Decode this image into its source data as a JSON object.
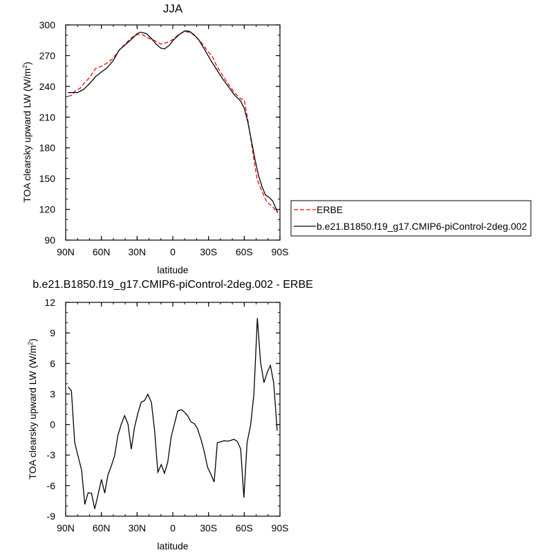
{
  "chart_data": [
    {
      "type": "line",
      "title": "JJA",
      "xlabel": "latitude",
      "ylabel": "TOA clearsky upward LW (W/m²)",
      "xlim": [
        90,
        -90
      ],
      "ylim": [
        90,
        300
      ],
      "xticks": [
        90,
        60,
        30,
        0,
        -30,
        -60,
        -90
      ],
      "xticklabels": [
        "90N",
        "60N",
        "30N",
        "0",
        "30S",
        "60S",
        "90S"
      ],
      "yticks": [
        90,
        120,
        150,
        180,
        210,
        240,
        270,
        300
      ],
      "yticklabels": [
        "90",
        "120",
        "150",
        "180",
        "210",
        "240",
        "270",
        "300"
      ],
      "grid": false,
      "legend": "right",
      "series": [
        {
          "name": "ERBE",
          "color": "#ff0000",
          "dash": "dashed",
          "x": [
            88,
            85,
            82,
            78,
            74,
            70,
            65,
            60,
            55,
            50,
            45,
            40,
            35,
            30,
            25,
            20,
            15,
            10,
            5,
            0,
            -5,
            -10,
            -15,
            -20,
            -25,
            -30,
            -33,
            -37,
            -42,
            -47,
            -52,
            -57,
            -60,
            -63,
            -66,
            -69,
            -71,
            -75,
            -79,
            -83,
            -88
          ],
          "y": [
            230.2,
            231.3,
            235.8,
            238.1,
            243.8,
            248.3,
            257.4,
            259.6,
            263,
            267.6,
            275.5,
            281.2,
            287.3,
            290.7,
            290.2,
            286.8,
            284.6,
            281.2,
            282.8,
            285.7,
            290.9,
            293.7,
            292.5,
            288,
            281.2,
            273.2,
            269.8,
            259.6,
            250.6,
            241.5,
            233.6,
            227.9,
            226.8,
            207.5,
            184.8,
            162.2,
            148.5,
            137.2,
            127,
            123.6,
            116.8
          ]
        },
        {
          "name": "b.e21.B1850.f19_g17.CMIP6-piControl-2deg.002",
          "color": "#000000",
          "dash": "solid",
          "x": [
            88,
            80,
            75,
            70,
            65,
            60,
            55,
            50,
            45,
            40,
            35,
            30,
            27,
            22,
            18,
            14,
            10,
            7,
            3,
            0,
            -5,
            -10,
            -14,
            -18,
            -22,
            -27,
            -32,
            -37,
            -42,
            -47,
            -52,
            -57,
            -60,
            -63,
            -66,
            -69,
            -72,
            -75,
            -78,
            -81,
            -84,
            -88
          ],
          "y": [
            234,
            234,
            237,
            242.6,
            249.4,
            254,
            258.5,
            265.3,
            275.5,
            280.5,
            285.7,
            291.4,
            293,
            291.4,
            286.8,
            281.2,
            277.3,
            276.6,
            280,
            284.6,
            290.2,
            294.1,
            293.7,
            290.2,
            285,
            275.5,
            265.3,
            256.2,
            247.2,
            239.2,
            231.3,
            225.6,
            218.8,
            205.2,
            187.1,
            169,
            153.1,
            141.8,
            133.8,
            131.5,
            128.1,
            116.8
          ]
        }
      ]
    },
    {
      "type": "line",
      "title": "b.e21.B1850.f19_g17.CMIP6-piControl-2deg.002 - ERBE",
      "xlabel": "latitude",
      "ylabel": "TOA clearsky upward LW (W/m²)",
      "xlim": [
        90,
        -90
      ],
      "ylim": [
        -9,
        12
      ],
      "xticks": [
        90,
        60,
        30,
        0,
        -30,
        -60,
        -90
      ],
      "xticklabels": [
        "90N",
        "60N",
        "30N",
        "0",
        "30S",
        "60S",
        "90S"
      ],
      "yticks": [
        -9,
        -6,
        -3,
        0,
        3,
        6,
        9,
        12
      ],
      "yticklabels": [
        "-9",
        "-6",
        "-3",
        "0",
        "3",
        "6",
        "9",
        "12"
      ],
      "grid": false,
      "series": [
        {
          "color": "#000000",
          "x": [
            87.9,
            85.2,
            82.4,
            79.5,
            76.6,
            73.9,
            71.2,
            68.3,
            65.6,
            62.7,
            59.9,
            57.2,
            54.5,
            51.6,
            48.9,
            46.2,
            43.3,
            40.5,
            37.6,
            34.9,
            32.2,
            29.3,
            26.6,
            23.7,
            21.0,
            18.0,
            15.3,
            12.6,
            9.7,
            7.0,
            4.3,
            1.4,
            -1.4,
            -4.1,
            -7.0,
            -9.7,
            -12.4,
            -15.3,
            -18.0,
            -20.7,
            -23.7,
            -26.4,
            -29.1,
            -32.0,
            -34.7,
            -37.4,
            -40.3,
            -43.0,
            -45.8,
            -48.7,
            -51.4,
            -54.1,
            -57.0,
            -59.7,
            -62.4,
            -65.3,
            -68.1,
            -71.0,
            -73.7,
            -76.6,
            -79.3,
            -82.0,
            -84.7,
            -87.7
          ],
          "y": [
            3.7,
            3.31,
            -1.79,
            -3.15,
            -4.51,
            -7.84,
            -6.71,
            -6.75,
            -8.29,
            -6.84,
            -5.39,
            -6.73,
            -4.96,
            -4.05,
            -3.06,
            -1.11,
            0.03,
            0.87,
            0.03,
            -2.42,
            -0.31,
            1.12,
            2.18,
            2.36,
            2.98,
            2.18,
            -0.61,
            -4.67,
            -3.94,
            -4.78,
            -3.71,
            -1.22,
            0.07,
            1.34,
            1.46,
            1.23,
            0.87,
            0.25,
            0.1,
            -0.38,
            -1.47,
            -2.65,
            -4.17,
            -4.89,
            -5.64,
            -1.79,
            -1.7,
            -1.58,
            -1.63,
            -1.56,
            -1.45,
            -1.65,
            -2.4,
            -7.18,
            -1.74,
            -0.09,
            2.98,
            10.46,
            6.15,
            4.11,
            5.13,
            5.81,
            4.11,
            -0.61
          ]
        }
      ]
    }
  ]
}
